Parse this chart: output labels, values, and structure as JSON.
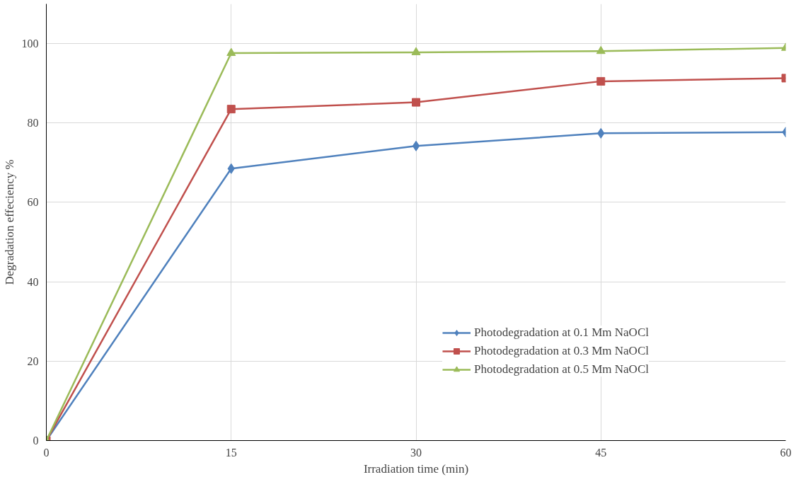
{
  "chart_data": {
    "type": "line",
    "xlabel": "Irradiation time (min)",
    "ylabel": "Degradation effeciency %",
    "x": [
      0,
      15,
      30,
      45,
      60
    ],
    "xlim": [
      0,
      60
    ],
    "xticks": [
      0,
      15,
      30,
      45,
      60
    ],
    "ylim": [
      0,
      110
    ],
    "yticks": [
      0,
      20,
      40,
      60,
      80,
      100
    ],
    "grid": true,
    "legend": "right",
    "series": [
      {
        "name": "Photodegradation at 0.1 Mm NaOCl",
        "color": "#4f81bd",
        "marker": "diamond",
        "values": [
          0,
          68.5,
          74.2,
          77.4,
          77.7
        ]
      },
      {
        "name": "Photodegradation at 0.3 Mm NaOCl",
        "color": "#c0504d",
        "marker": "square",
        "values": [
          0,
          83.5,
          85.2,
          90.5,
          91.3
        ]
      },
      {
        "name": "Photodegradation at 0.5 Mm NaOCl",
        "color": "#9bbb59",
        "marker": "triangle",
        "values": [
          0,
          97.6,
          97.8,
          98.1,
          98.9
        ]
      }
    ]
  }
}
